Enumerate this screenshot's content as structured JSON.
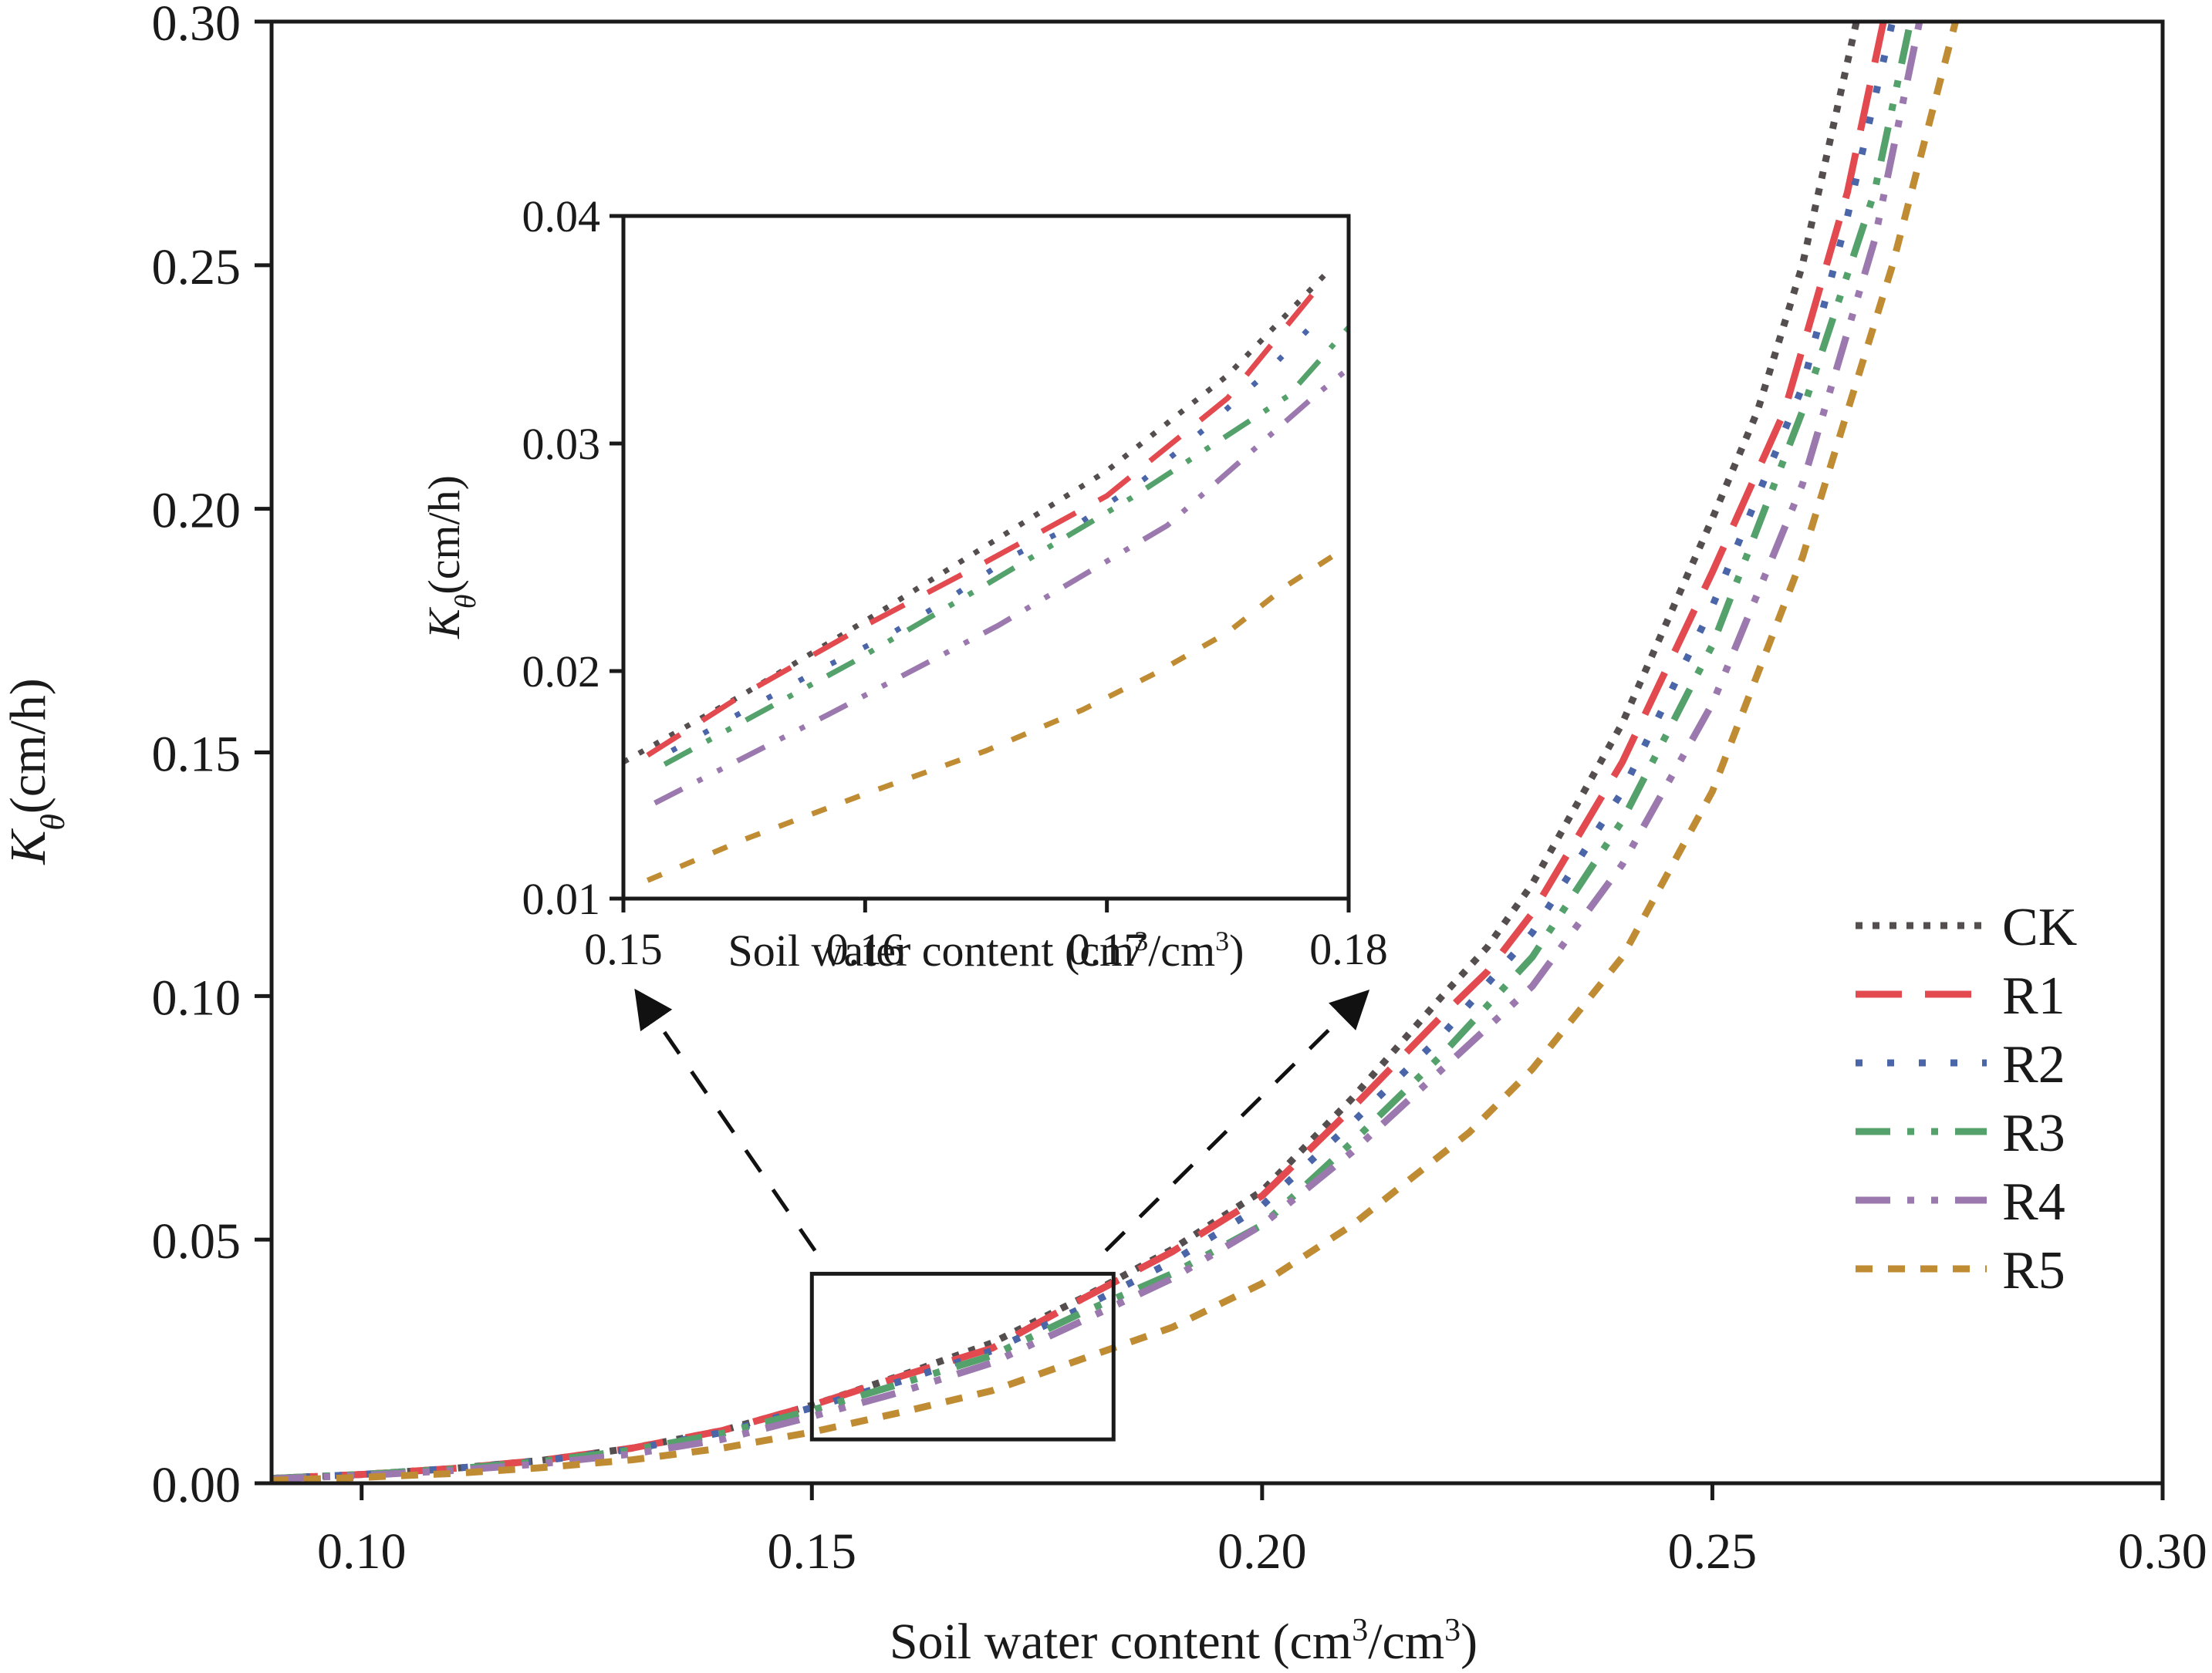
{
  "chart_data": {
    "type": "line",
    "title": "",
    "xlabel": "Soil water content (cm",
    "xlabel_sup1": "3",
    "xlabel_mid": "/cm",
    "xlabel_sup2": "3",
    "xlabel_end": ")",
    "ylabel_symbol": "K",
    "ylabel_subscript": "θ",
    "ylabel_unit": "(cm/h)",
    "xlim": [
      0.09,
      0.3
    ],
    "ylim": [
      0.0,
      0.3
    ],
    "grid": false,
    "legend_position": "center-right",
    "x_ticks": [
      "0.10",
      "0.15",
      "0.20",
      "0.25",
      "0.30"
    ],
    "x_tick_values": [
      0.1,
      0.15,
      0.2,
      0.25,
      0.3
    ],
    "y_ticks": [
      "0.00",
      "0.05",
      "0.10",
      "0.15",
      "0.20",
      "0.25",
      "0.30"
    ],
    "y_tick_values": [
      0.0,
      0.05,
      0.1,
      0.15,
      0.2,
      0.25,
      0.3
    ],
    "series": [
      {
        "name": "CK",
        "color": "#554e4e",
        "style": "dotted",
        "x": [
          0.09,
          0.1,
          0.11,
          0.12,
          0.13,
          0.14,
          0.15,
          0.16,
          0.17,
          0.18,
          0.19,
          0.2,
          0.21,
          0.22,
          0.225,
          0.23,
          0.24,
          0.25,
          0.255,
          0.26,
          0.266
        ],
        "y": [
          0.001,
          0.0018,
          0.003,
          0.0047,
          0.0072,
          0.0108,
          0.016,
          0.0222,
          0.0288,
          0.038,
          0.048,
          0.06,
          0.079,
          0.1,
          0.11,
          0.123,
          0.156,
          0.198,
          0.22,
          0.25,
          0.3
        ]
      },
      {
        "name": "R1",
        "color": "#e24a4f",
        "style": "long-dash",
        "x": [
          0.09,
          0.1,
          0.11,
          0.12,
          0.13,
          0.14,
          0.15,
          0.16,
          0.17,
          0.18,
          0.19,
          0.2,
          0.21,
          0.22,
          0.225,
          0.23,
          0.24,
          0.25,
          0.258,
          0.265,
          0.269
        ],
        "y": [
          0.001,
          0.0018,
          0.003,
          0.0047,
          0.0072,
          0.0108,
          0.016,
          0.022,
          0.0277,
          0.0378,
          0.0475,
          0.059,
          0.077,
          0.096,
          0.105,
          0.117,
          0.148,
          0.187,
          0.22,
          0.265,
          0.3
        ]
      },
      {
        "name": "R2",
        "color": "#4a65a8",
        "style": "sparse-dot",
        "x": [
          0.09,
          0.1,
          0.11,
          0.12,
          0.13,
          0.14,
          0.15,
          0.16,
          0.17,
          0.18,
          0.19,
          0.2,
          0.21,
          0.22,
          0.23,
          0.24,
          0.25,
          0.26,
          0.265,
          0.27
        ],
        "y": [
          0.001,
          0.0018,
          0.003,
          0.0046,
          0.007,
          0.0104,
          0.0155,
          0.021,
          0.0272,
          0.036,
          0.0455,
          0.057,
          0.074,
          0.092,
          0.113,
          0.142,
          0.18,
          0.225,
          0.26,
          0.3
        ]
      },
      {
        "name": "R3",
        "color": "#55a16c",
        "style": "dash-dot-dot",
        "x": [
          0.09,
          0.1,
          0.11,
          0.12,
          0.13,
          0.14,
          0.15,
          0.16,
          0.17,
          0.18,
          0.19,
          0.2,
          0.21,
          0.22,
          0.23,
          0.24,
          0.25,
          0.26,
          0.268,
          0.272
        ],
        "y": [
          0.001,
          0.0018,
          0.0029,
          0.0045,
          0.0068,
          0.0102,
          0.015,
          0.0205,
          0.0262,
          0.035,
          0.043,
          0.053,
          0.07,
          0.088,
          0.108,
          0.136,
          0.172,
          0.22,
          0.265,
          0.3
        ]
      },
      {
        "name": "R4",
        "color": "#9b79ae",
        "style": "dash-dot-dot",
        "x": [
          0.09,
          0.1,
          0.11,
          0.12,
          0.13,
          0.14,
          0.15,
          0.16,
          0.17,
          0.18,
          0.19,
          0.2,
          0.21,
          0.22,
          0.23,
          0.24,
          0.25,
          0.26,
          0.268,
          0.273
        ],
        "y": [
          0.0009,
          0.0016,
          0.0026,
          0.004,
          0.006,
          0.009,
          0.0137,
          0.0188,
          0.0247,
          0.0333,
          0.042,
          0.053,
          0.068,
          0.085,
          0.102,
          0.127,
          0.16,
          0.205,
          0.255,
          0.3
        ]
      },
      {
        "name": "R5",
        "color": "#c08c33",
        "style": "short-dash",
        "x": [
          0.09,
          0.1,
          0.11,
          0.12,
          0.13,
          0.14,
          0.15,
          0.16,
          0.17,
          0.18,
          0.19,
          0.2,
          0.21,
          0.223,
          0.23,
          0.24,
          0.25,
          0.26,
          0.27,
          0.277
        ],
        "y": [
          0.0006,
          0.0012,
          0.002,
          0.0032,
          0.0048,
          0.0072,
          0.0105,
          0.0146,
          0.019,
          0.0255,
          0.032,
          0.041,
          0.053,
          0.072,
          0.085,
          0.108,
          0.142,
          0.19,
          0.25,
          0.3
        ]
      }
    ],
    "zoom_box": {
      "x": [
        0.15,
        0.1835
      ],
      "y": [
        0.009,
        0.043
      ]
    },
    "inset": {
      "xlabel": "Soil water content (cm",
      "xlabel_sup1": "3",
      "xlabel_mid": "/cm",
      "xlabel_sup2": "3",
      "xlabel_end": ")",
      "ylabel_symbol": "K",
      "ylabel_subscript": "θ",
      "ylabel_unit": "(cm/h)",
      "xlim": [
        0.15,
        0.18
      ],
      "ylim": [
        0.01,
        0.04
      ],
      "x_ticks": [
        "0.15",
        "0.16",
        "0.17",
        "0.18"
      ],
      "x_tick_values": [
        0.15,
        0.16,
        0.17,
        0.18
      ],
      "y_ticks": [
        "0.01",
        "0.02",
        "0.03",
        "0.04"
      ],
      "y_tick_values": [
        0.01,
        0.02,
        0.03,
        0.04
      ],
      "series": [
        {
          "name": "CK",
          "x": [
            0.15,
            0.155,
            0.16,
            0.165,
            0.17,
            0.175,
            0.179
          ],
          "y": [
            0.016,
            0.019,
            0.0222,
            0.0255,
            0.0288,
            0.033,
            0.0374
          ]
        },
        {
          "name": "R1",
          "x": [
            0.151,
            0.155,
            0.16,
            0.165,
            0.17,
            0.175,
            0.179
          ],
          "y": [
            0.0163,
            0.019,
            0.022,
            0.0248,
            0.0277,
            0.032,
            0.0372
          ]
        },
        {
          "name": "R2",
          "x": [
            0.152,
            0.158,
            0.161,
            0.1635,
            0.166,
            0.169,
            0.1715,
            0.174,
            0.1765,
            0.1785
          ],
          "y": [
            0.0165,
            0.02,
            0.0216,
            0.0232,
            0.025,
            0.0266,
            0.0284,
            0.0306,
            0.033,
            0.0352
          ]
        },
        {
          "name": "R3",
          "x": [
            0.1517,
            0.1595,
            0.165,
            0.171,
            0.1775,
            0.18
          ],
          "y": [
            0.0159,
            0.0204,
            0.0238,
            0.0276,
            0.0321,
            0.0351
          ]
        },
        {
          "name": "R4",
          "x": [
            0.1513,
            0.1585,
            0.1655,
            0.1725,
            0.1785,
            0.18
          ],
          "y": [
            0.0142,
            0.0181,
            0.022,
            0.0264,
            0.032,
            0.0333
          ]
        },
        {
          "name": "R5",
          "x": [
            0.151,
            0.155,
            0.16,
            0.165,
            0.169,
            0.172,
            0.175,
            0.1775,
            0.18
          ],
          "y": [
            0.0108,
            0.0126,
            0.0146,
            0.0165,
            0.0183,
            0.0199,
            0.0217,
            0.0238,
            0.0255
          ]
        }
      ]
    },
    "legend": [
      {
        "label": "CK",
        "color": "#554e4e",
        "style": "dotted"
      },
      {
        "label": "R1",
        "color": "#e24a4f",
        "style": "long-dash"
      },
      {
        "label": "R2",
        "color": "#4a65a8",
        "style": "sparse-dot"
      },
      {
        "label": "R3",
        "color": "#55a16c",
        "style": "dash-dot-dot"
      },
      {
        "label": "R4",
        "color": "#9b79ae",
        "style": "dash-dot-dot"
      },
      {
        "label": "R5",
        "color": "#c08c33",
        "style": "short-dash"
      }
    ]
  }
}
